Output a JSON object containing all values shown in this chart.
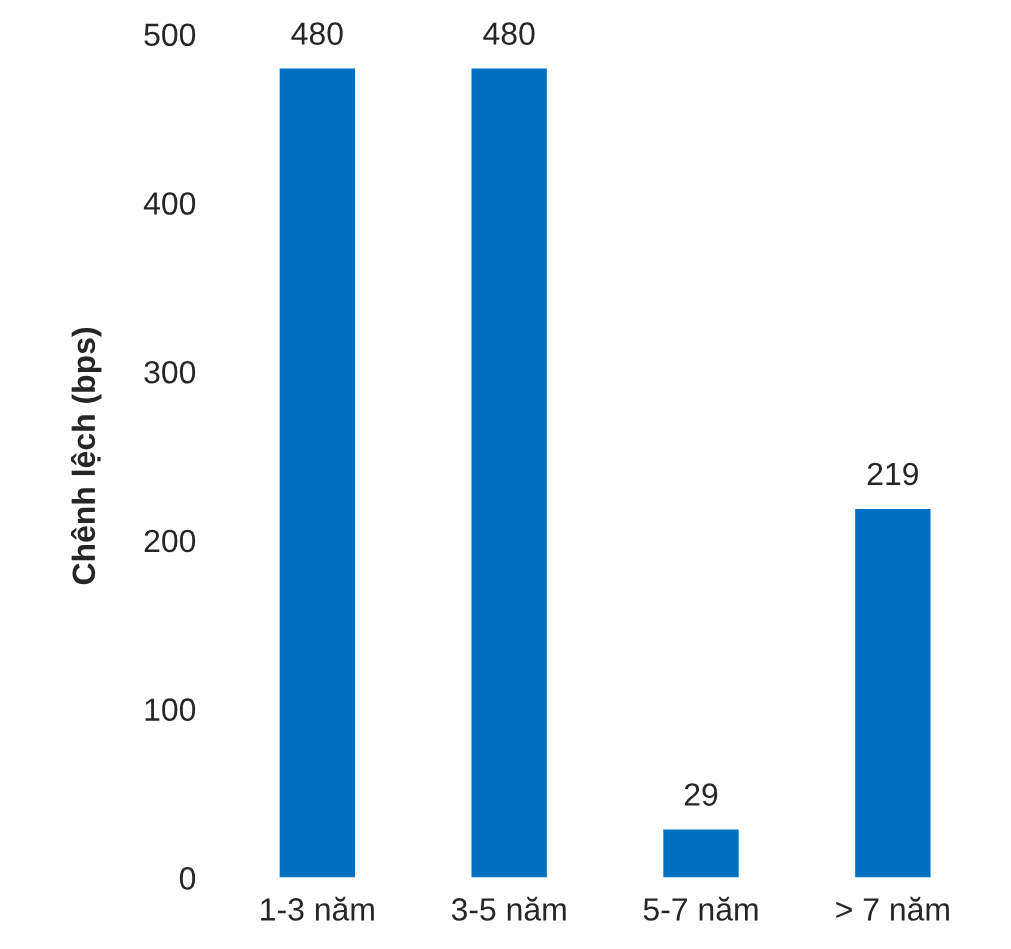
{
  "chart_data": {
    "type": "bar",
    "ylabel": "Chênh lệch (bps)",
    "categories": [
      "1-3 năm",
      "3-5 năm",
      "5-7 năm",
      "> 7 năm"
    ],
    "values": [
      480,
      480,
      29,
      219
    ],
    "color": "#0070c0",
    "ylim": [
      0,
      500
    ],
    "yticks": [
      0,
      100,
      200,
      300,
      400,
      500
    ],
    "grid": false,
    "data_labels": true
  }
}
